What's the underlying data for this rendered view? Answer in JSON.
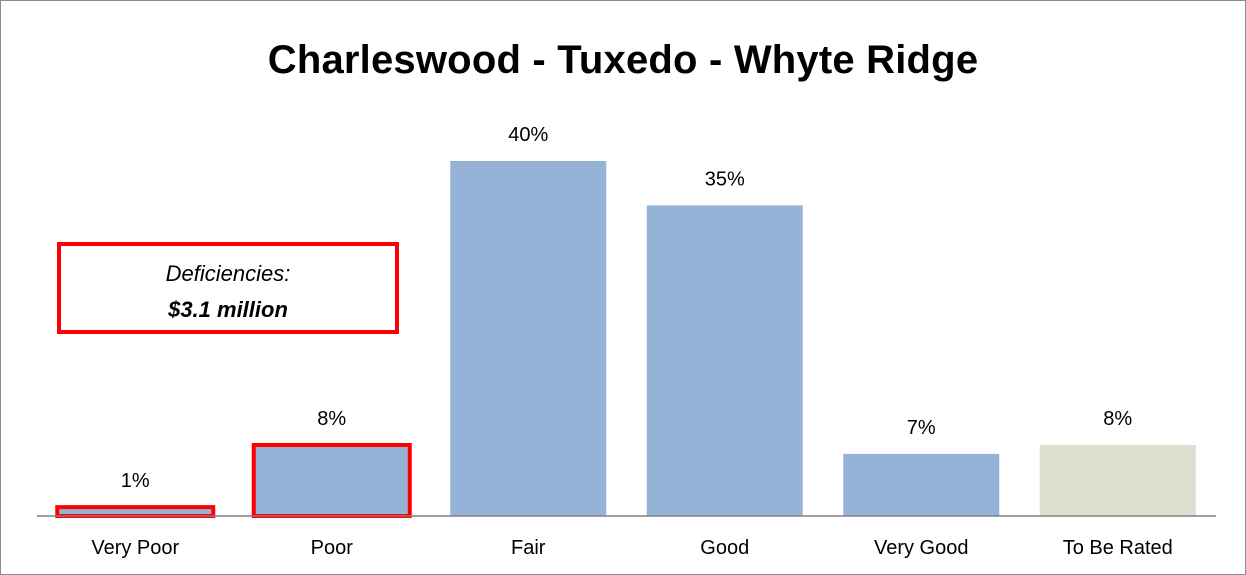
{
  "chart_data": {
    "type": "bar",
    "title": "Charleswood - Tuxedo - Whyte Ridge",
    "categories": [
      "Very Poor",
      "Poor",
      "Fair",
      "Good",
      "Very Good",
      "To Be Rated"
    ],
    "values": [
      1,
      8,
      40,
      35,
      7,
      8
    ],
    "value_labels": [
      "1%",
      "8%",
      "40%",
      "35%",
      "7%",
      "8%"
    ],
    "unit": "%",
    "xlabel": "",
    "ylabel": "",
    "ylim": [
      0,
      40
    ],
    "grid": false,
    "legend": "none",
    "colors": [
      "#95b3d7",
      "#95b3d7",
      "#95b3d7",
      "#95b3d7",
      "#95b3d7",
      "#dddfd0"
    ],
    "highlighted_categories": [
      "Very Poor",
      "Poor"
    ],
    "highlight_color": "#ff0000",
    "axis_color": "#808080"
  },
  "callout": {
    "line1": "Deficiencies:",
    "line2": "$3.1 million",
    "border_color": "#ff0000"
  }
}
